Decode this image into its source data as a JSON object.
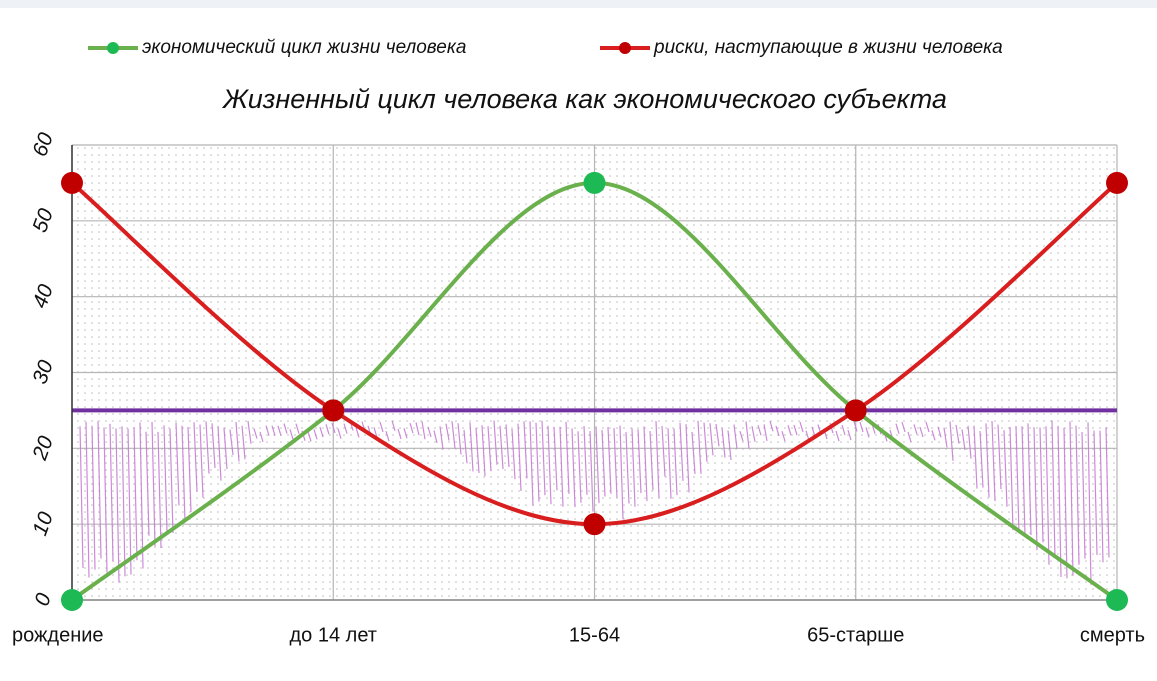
{
  "chart_data": {
    "type": "line",
    "title": "Жизненный цикл человека как экономического субъекта",
    "categories": [
      "рождение",
      "до 14 лет",
      "15-64",
      "65-старше",
      "смерть"
    ],
    "series": [
      {
        "name": "экономический цикл жизни человека",
        "color": "#6ab04c",
        "marker_color": "#1db954",
        "values": [
          0,
          25,
          55,
          25,
          0
        ]
      },
      {
        "name": "риски, наступающие в жизни человека",
        "color": "#d81e1e",
        "marker_color": "#c00000",
        "values": [
          55,
          25,
          10,
          25,
          55
        ]
      }
    ],
    "reference_line": {
      "value": 25,
      "color": "#7030a0"
    },
    "ylim": [
      0,
      60
    ],
    "yticks": [
      0,
      10,
      20,
      30,
      40,
      50,
      60
    ],
    "grid": true,
    "legend": "top"
  }
}
